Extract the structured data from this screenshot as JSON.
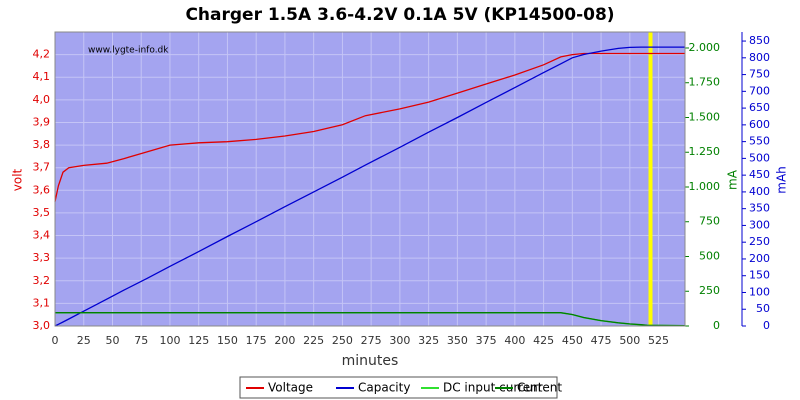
{
  "chart_data": {
    "type": "line",
    "title": "Charger 1.5A 3.6-4.2V 0.1A 5V (KP14500-08)",
    "annotation": "www.lygte-info.dk",
    "xlabel": "minutes",
    "ylabel": "volt",
    "y2label": "mA",
    "y3label": "mAh",
    "x": [
      0,
      3,
      7,
      12,
      25,
      45,
      60,
      80,
      100,
      125,
      150,
      175,
      200,
      225,
      250,
      270,
      300,
      325,
      350,
      375,
      400,
      425,
      440,
      450,
      460,
      475,
      490,
      500,
      510,
      515,
      548
    ],
    "series": [
      {
        "name": "Voltage",
        "color": "#e00000",
        "axis": "y",
        "values": [
          3.55,
          3.62,
          3.68,
          3.7,
          3.71,
          3.72,
          3.74,
          3.77,
          3.8,
          3.81,
          3.815,
          3.825,
          3.84,
          3.86,
          3.89,
          3.93,
          3.96,
          3.99,
          4.03,
          4.07,
          4.11,
          4.155,
          4.19,
          4.2,
          4.205,
          4.205,
          4.205,
          4.205,
          4.205,
          4.205,
          4.205
        ]
      },
      {
        "name": "Capacity",
        "color": "#0000d0",
        "axis": "y3",
        "values": [
          0,
          5,
          12,
          21,
          44,
          80,
          107,
          142,
          178,
          222,
          267,
          311,
          356,
          400,
          444,
          480,
          533,
          578,
          622,
          667,
          711,
          756,
          782,
          800,
          810,
          820,
          828,
          831,
          832,
          832,
          832
        ]
      },
      {
        "name": "DC input current",
        "color": "#30e030",
        "axis": "y2",
        "values": [
          95,
          95,
          95,
          95,
          95,
          95,
          95,
          95,
          95,
          95,
          95,
          95,
          95,
          95,
          95,
          95,
          95,
          95,
          95,
          95,
          95,
          95,
          95,
          82,
          60,
          38,
          22,
          14,
          8,
          5,
          3
        ]
      },
      {
        "name": "Current",
        "color": "#008000",
        "axis": "y2",
        "values": [
          96,
          96,
          96,
          96,
          96,
          96,
          96,
          96,
          96,
          96,
          96,
          96,
          96,
          96,
          96,
          96,
          96,
          96,
          96,
          96,
          96,
          96,
          96,
          83,
          61,
          39,
          23,
          15,
          9,
          5,
          3
        ]
      }
    ],
    "marker_x": 518,
    "marker_color": "#ffff00",
    "xlim": [
      0,
      548
    ],
    "xticks": [
      0,
      25,
      50,
      75,
      100,
      125,
      150,
      175,
      200,
      225,
      250,
      275,
      300,
      325,
      350,
      375,
      400,
      425,
      450,
      475,
      500,
      525
    ],
    "ylim": [
      3.0,
      4.3
    ],
    "yticks": [
      {
        "value": 3.0,
        "label": "3,0"
      },
      {
        "value": 3.1,
        "label": "3,1"
      },
      {
        "value": 3.2,
        "label": "3,2"
      },
      {
        "value": 3.3,
        "label": "3,3"
      },
      {
        "value": 3.4,
        "label": "3,4"
      },
      {
        "value": 3.5,
        "label": "3,5"
      },
      {
        "value": 3.6,
        "label": "3,6"
      },
      {
        "value": 3.7,
        "label": "3,7"
      },
      {
        "value": 3.8,
        "label": "3,8"
      },
      {
        "value": 3.9,
        "label": "3,9"
      },
      {
        "value": 4.0,
        "label": "4,0"
      },
      {
        "value": 4.1,
        "label": "4,1"
      },
      {
        "value": 4.2,
        "label": "4,2"
      }
    ],
    "y2lim": [
      0,
      2115
    ],
    "y2ticks": [
      0,
      250,
      500,
      750,
      {
        "value": 1000,
        "label": "1.000"
      },
      {
        "value": 1250,
        "label": "1.250"
      },
      {
        "value": 1500,
        "label": "1.500"
      },
      {
        "value": 1750,
        "label": "1.750"
      },
      {
        "value": 2000,
        "label": "2.000"
      }
    ],
    "y3lim": [
      0,
      877
    ],
    "y3ticks": [
      0,
      50,
      100,
      150,
      200,
      250,
      300,
      350,
      400,
      450,
      500,
      550,
      600,
      650,
      700,
      750,
      800,
      850
    ],
    "grid": true,
    "legend": "bottom"
  }
}
